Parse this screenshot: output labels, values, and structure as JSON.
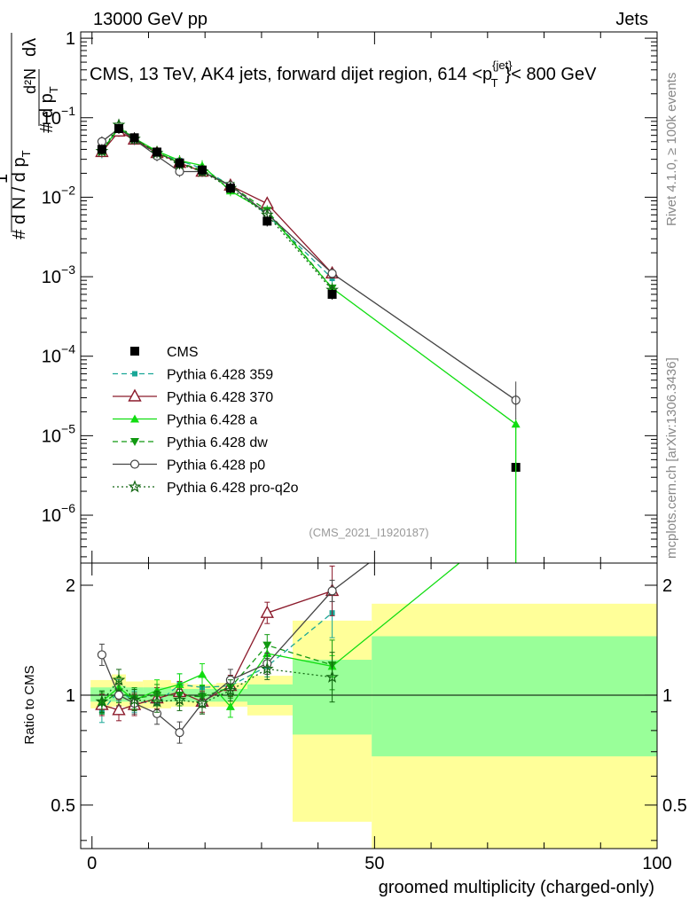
{
  "header": {
    "left": "13000 GeV pp",
    "right": "Jets"
  },
  "side": {
    "rivet": "Rivet 4.1.0, ≥ 100k events",
    "mcplots": "mcplots.cern.ch [arXiv:1306.3436]"
  },
  "main_title": {
    "prefix": "CMS, 13 TeV, AK4 jets, forward dijet region, 614 <p",
    "sup": "{jet}",
    "sub": "T",
    "suffix": "}< 800 GeV"
  },
  "ylabel_main": {
    "hash1": "#",
    "one": "1",
    "den": "d N / d p",
    "den_sub": "T",
    "hash2": "#",
    "mid": "d p",
    "mid_sub": "T",
    "num": "d²N",
    "dl": "dλ"
  },
  "analysis_id": "(CMS_2021_I1920187)",
  "ylabel_ratio": "Ratio to CMS",
  "xlabel": "groomed multiplicity (charged-only)",
  "colors": {
    "cms": "#000000",
    "p359": "#1aa797",
    "p370": "#8b1a2b",
    "pa": "#11dd11",
    "pdw": "#119911",
    "pp0": "#444444",
    "pq2o": "#116611",
    "band_outer": "#ffff99",
    "band_inner": "#99ff99"
  },
  "chart_data": [
    {
      "type": "line",
      "panel": "main",
      "yscale": "log",
      "xlim": [
        -2,
        100
      ],
      "ylim": [
        2.5e-07,
        1.2
      ],
      "x_ticks": [
        0,
        50,
        100
      ],
      "y_ticks": [
        {
          "value": 1e-06,
          "base": "10",
          "exp": "−6"
        },
        {
          "value": 1e-05,
          "base": "10",
          "exp": "−5"
        },
        {
          "value": 0.0001,
          "base": "10",
          "exp": "−4"
        },
        {
          "value": 0.001,
          "base": "10",
          "exp": "−3"
        },
        {
          "value": 0.01,
          "base": "10",
          "exp": "−2"
        },
        {
          "value": 0.1,
          "base": "10",
          "exp": "−1"
        },
        {
          "value": 1,
          "base": "1",
          "exp": ""
        }
      ],
      "legend_position": "middle-left",
      "series": [
        {
          "key": "cms",
          "name": "CMS",
          "marker": "square",
          "style": "none",
          "x": [
            1.75,
            4.75,
            7.5,
            11.5,
            15.5,
            19.5,
            24.5,
            31.0,
            42.5,
            75.0
          ],
          "y": [
            0.04,
            0.073,
            0.056,
            0.037,
            0.027,
            0.022,
            0.013,
            0.005,
            0.0006,
            4e-06
          ]
        },
        {
          "key": "p359",
          "name": "Pythia 6.428 359",
          "marker": "square-small",
          "style": "dashed",
          "x": [
            1.75,
            4.75,
            7.5,
            11.5,
            15.5,
            19.5,
            24.5,
            31.0,
            42.5
          ],
          "y": [
            0.036,
            0.075,
            0.054,
            0.035,
            0.029,
            0.023,
            0.014,
            0.006,
            0.00095
          ]
        },
        {
          "key": "p370",
          "name": "Pythia 6.428 370",
          "marker": "triangle-open",
          "style": "solid",
          "x": [
            1.75,
            4.75,
            7.5,
            11.5,
            15.5,
            19.5,
            24.5,
            31.0,
            42.5
          ],
          "y": [
            0.037,
            0.067,
            0.053,
            0.036,
            0.027,
            0.021,
            0.014,
            0.0083,
            0.0011
          ]
        },
        {
          "key": "pa",
          "name": "Pythia 6.428 a",
          "marker": "triangle",
          "style": "solid",
          "x": [
            1.75,
            4.75,
            7.5,
            11.5,
            15.5,
            19.5,
            24.5,
            31.0,
            42.5,
            75.0
          ],
          "y": [
            0.038,
            0.076,
            0.055,
            0.038,
            0.029,
            0.025,
            0.012,
            0.0065,
            0.00072,
            1.4e-05
          ]
        },
        {
          "key": "pdw",
          "name": "Pythia 6.428 dw",
          "marker": "triangle-down",
          "style": "dashed",
          "x": [
            1.75,
            4.75,
            7.5,
            11.5,
            15.5,
            19.5,
            24.5,
            31.0,
            42.5
          ],
          "y": [
            0.038,
            0.074,
            0.055,
            0.037,
            0.027,
            0.022,
            0.014,
            0.0068,
            0.00072
          ]
        },
        {
          "key": "pp0",
          "name": "Pythia 6.428 p0",
          "marker": "circle-open",
          "style": "solid",
          "x": [
            1.75,
            4.75,
            7.5,
            11.5,
            15.5,
            19.5,
            24.5,
            31.0,
            42.5,
            75.0
          ],
          "y": [
            0.05,
            0.073,
            0.053,
            0.033,
            0.021,
            0.021,
            0.014,
            0.0062,
            0.0011,
            2.8e-05
          ]
        },
        {
          "key": "pq2o",
          "name": "Pythia 6.428 pro-q2o",
          "marker": "star",
          "style": "dotted",
          "x": [
            1.75,
            4.75,
            7.5,
            11.5,
            15.5,
            19.5,
            24.5,
            31.0,
            42.5
          ],
          "y": [
            0.038,
            0.081,
            0.054,
            0.036,
            0.026,
            0.021,
            0.013,
            0.006,
            0.00068
          ]
        }
      ]
    },
    {
      "type": "line",
      "panel": "ratio",
      "yscale": "log",
      "xlim": [
        -2,
        100
      ],
      "ylim": [
        0.38,
        2.3
      ],
      "x_ticks": [
        0,
        50,
        100
      ],
      "y_ticks": [
        {
          "value": 0.5,
          "label": "0.5"
        },
        {
          "value": 1,
          "label": "1"
        },
        {
          "value": 2,
          "label": "2"
        }
      ],
      "reference_line": 1,
      "bands": [
        {
          "x0": -0.25,
          "x1": 3.5,
          "outer": [
            0.92,
            1.1
          ],
          "inner": [
            0.96,
            1.05
          ]
        },
        {
          "x0": 3.5,
          "x1": 6.0,
          "outer": [
            0.93,
            1.14
          ],
          "inner": [
            0.96,
            1.06
          ]
        },
        {
          "x0": 6.0,
          "x1": 9.0,
          "outer": [
            0.92,
            1.09
          ],
          "inner": [
            0.96,
            1.05
          ]
        },
        {
          "x0": 9.0,
          "x1": 14.0,
          "outer": [
            0.92,
            1.1
          ],
          "inner": [
            0.96,
            1.05
          ]
        },
        {
          "x0": 14.0,
          "x1": 17.0,
          "outer": [
            0.93,
            1.08
          ],
          "inner": [
            0.96,
            1.04
          ]
        },
        {
          "x0": 17.0,
          "x1": 22.0,
          "outer": [
            0.93,
            1.07
          ],
          "inner": [
            0.96,
            1.04
          ]
        },
        {
          "x0": 22.0,
          "x1": 27.5,
          "outer": [
            0.93,
            1.08
          ],
          "inner": [
            0.96,
            1.04
          ]
        },
        {
          "x0": 27.5,
          "x1": 35.5,
          "outer": [
            0.88,
            1.13
          ],
          "inner": [
            0.94,
            1.07
          ]
        },
        {
          "x0": 35.5,
          "x1": 49.5,
          "outer": [
            0.45,
            1.6
          ],
          "inner": [
            0.78,
            1.25
          ]
        },
        {
          "x0": 49.5,
          "x1": 100.0,
          "outer": [
            0.35,
            1.78
          ],
          "inner": [
            0.68,
            1.45
          ]
        }
      ],
      "series": [
        {
          "key": "p359",
          "x": [
            1.75,
            4.75,
            7.5,
            11.5,
            15.5,
            19.5,
            24.5,
            31.0,
            42.5
          ],
          "y": [
            0.9,
            1.03,
            0.96,
            0.95,
            1.07,
            1.05,
            1.06,
            1.2,
            1.68
          ]
        },
        {
          "key": "p370",
          "x": [
            1.75,
            4.75,
            7.5,
            11.5,
            15.5,
            19.5,
            24.5,
            31.0,
            42.5
          ],
          "y": [
            0.94,
            0.91,
            0.94,
            0.98,
            1.02,
            0.96,
            1.06,
            1.68,
            1.93
          ]
        },
        {
          "key": "pa",
          "x": [
            1.75,
            4.75,
            7.5,
            11.5,
            15.5,
            19.5,
            24.5,
            31.0,
            42.5,
            65.0
          ],
          "y": [
            0.96,
            1.05,
            0.97,
            1.03,
            1.07,
            1.14,
            0.93,
            1.3,
            1.2,
            2.3
          ]
        },
        {
          "key": "pdw",
          "x": [
            1.75,
            4.75,
            7.5,
            11.5,
            15.5,
            19.5,
            24.5,
            31.0,
            42.5
          ],
          "y": [
            0.95,
            1.02,
            0.98,
            1.0,
            1.0,
            0.99,
            1.05,
            1.37,
            1.21
          ]
        },
        {
          "key": "pp0",
          "x": [
            1.75,
            4.75,
            7.5,
            11.5,
            15.5,
            19.5,
            24.5,
            31.0,
            42.5,
            49.0
          ],
          "y": [
            1.29,
            1.0,
            0.95,
            0.89,
            0.79,
            0.95,
            1.1,
            1.22,
            1.93,
            2.3
          ]
        },
        {
          "key": "pq2o",
          "x": [
            1.75,
            4.75,
            7.5,
            11.5,
            15.5,
            19.5,
            24.5,
            31.0,
            42.5
          ],
          "y": [
            0.96,
            1.1,
            0.97,
            0.96,
            0.97,
            0.95,
            1.03,
            1.18,
            1.12
          ]
        }
      ]
    }
  ]
}
